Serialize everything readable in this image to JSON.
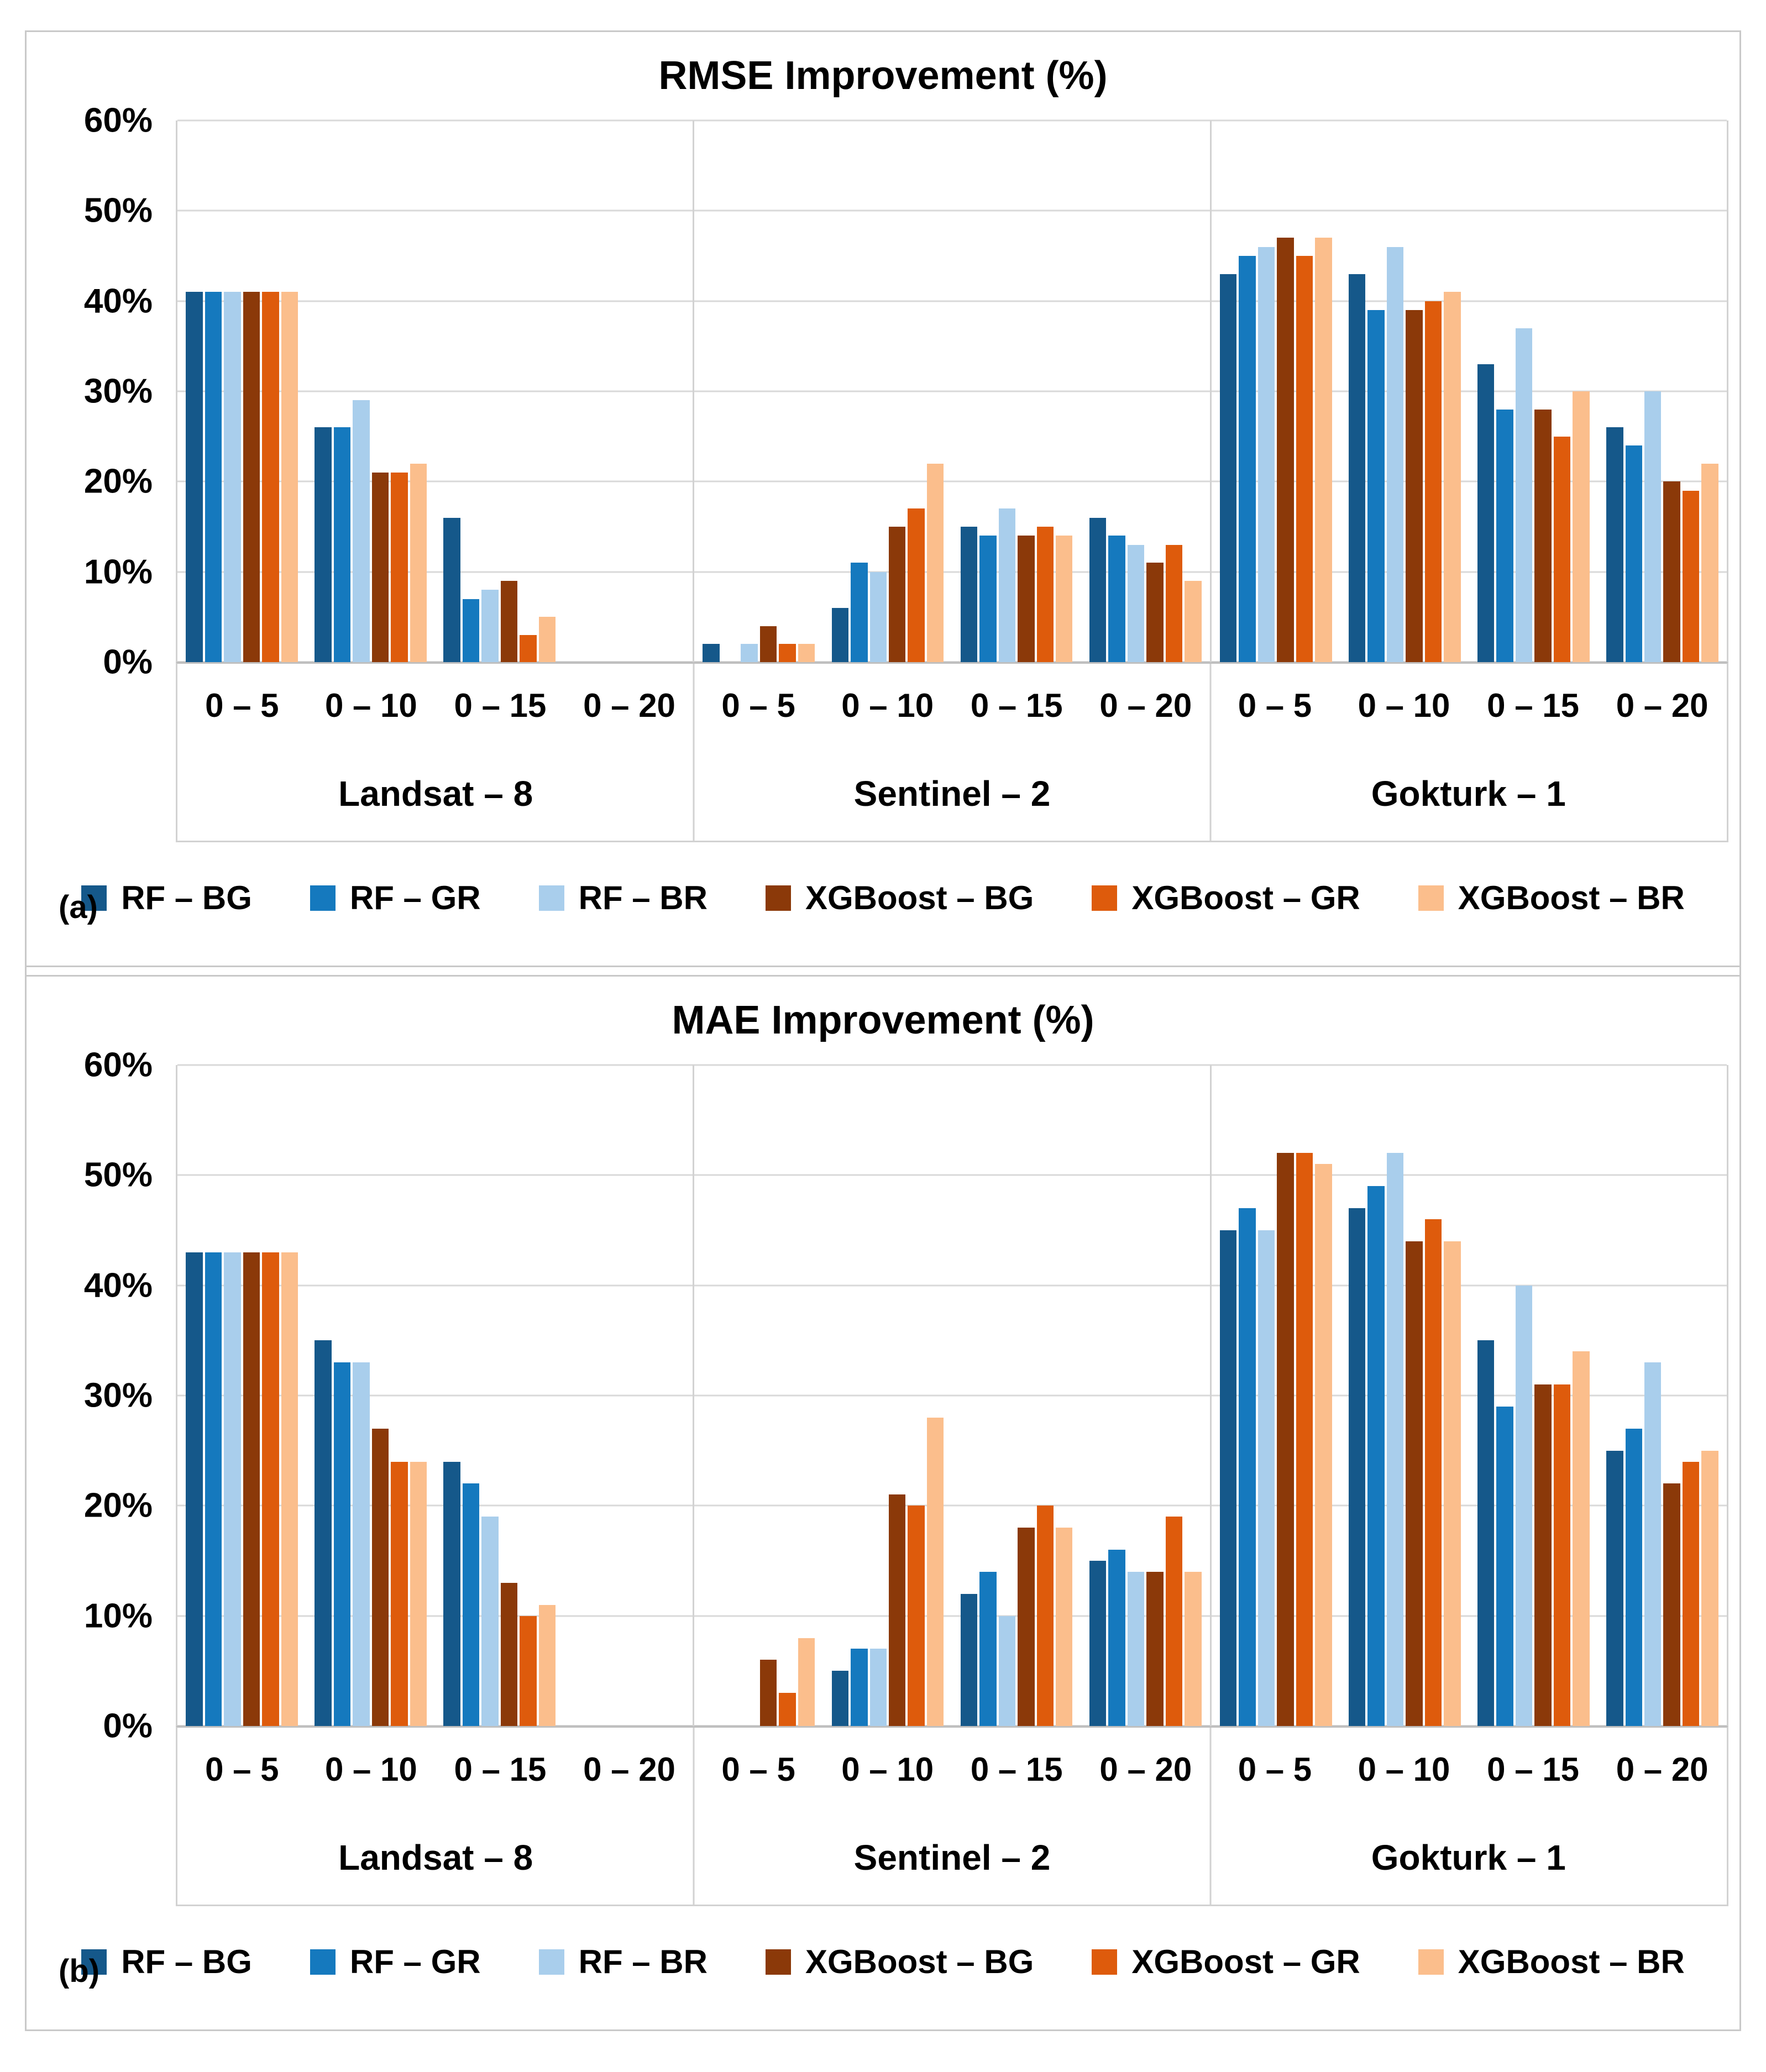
{
  "series": [
    {
      "name": "RF – BG",
      "color": "#15588A"
    },
    {
      "name": "RF – GR",
      "color": "#1579BE"
    },
    {
      "name": "RF – BR",
      "color": "#A9CEEC"
    },
    {
      "name": "XGBoost – BG",
      "color": "#8B3909"
    },
    {
      "name": "XGBoost – GR",
      "color": "#DE5B0C"
    },
    {
      "name": "XGBoost – BR",
      "color": "#FBBE8C"
    }
  ],
  "y_axis": {
    "ticks": [
      "60%",
      "50%",
      "40%",
      "30%",
      "20%",
      "10%",
      "0%"
    ],
    "max": 60
  },
  "chart_data": [
    {
      "type": "bar",
      "panel_label": "(a)",
      "title": "RMSE Improvement (%)",
      "ylabel": "",
      "ylim": [
        0,
        60
      ],
      "grid": true,
      "legend_position": "bottom",
      "series_names": [
        "RF – BG",
        "RF – GR",
        "RF – BR",
        "XGBoost – BG",
        "XGBoost – GR",
        "XGBoost – BR"
      ],
      "groups": [
        {
          "name": "Landsat – 8",
          "bins": [
            {
              "label": "0 – 5",
              "values": [
                41,
                41,
                41,
                41,
                41,
                41
              ]
            },
            {
              "label": "0 – 10",
              "values": [
                26,
                26,
                29,
                21,
                21,
                22
              ]
            },
            {
              "label": "0 – 15",
              "values": [
                16,
                7,
                8,
                9,
                3,
                5
              ]
            },
            {
              "label": "0 – 20",
              "values": [
                0,
                0,
                0,
                0,
                0,
                0
              ]
            }
          ]
        },
        {
          "name": "Sentinel – 2",
          "bins": [
            {
              "label": "0 – 5",
              "values": [
                2,
                0,
                2,
                4,
                2,
                2
              ]
            },
            {
              "label": "0 – 10",
              "values": [
                6,
                11,
                10,
                15,
                17,
                22
              ]
            },
            {
              "label": "0 – 15",
              "values": [
                15,
                14,
                17,
                14,
                15,
                14
              ]
            },
            {
              "label": "0 – 20",
              "values": [
                16,
                14,
                13,
                11,
                13,
                9
              ]
            }
          ]
        },
        {
          "name": "Gokturk – 1",
          "bins": [
            {
              "label": "0 – 5",
              "values": [
                43,
                45,
                46,
                47,
                45,
                47
              ]
            },
            {
              "label": "0 – 10",
              "values": [
                43,
                39,
                46,
                39,
                40,
                41
              ]
            },
            {
              "label": "0 – 15",
              "values": [
                33,
                28,
                37,
                28,
                25,
                30
              ]
            },
            {
              "label": "0 – 20",
              "values": [
                26,
                24,
                30,
                20,
                19,
                22
              ]
            }
          ]
        }
      ]
    },
    {
      "type": "bar",
      "panel_label": "(b)",
      "title": "MAE Improvement (%)",
      "ylabel": "",
      "ylim": [
        0,
        60
      ],
      "grid": true,
      "legend_position": "bottom",
      "series_names": [
        "RF – BG",
        "RF – GR",
        "RF – BR",
        "XGBoost – BG",
        "XGBoost – GR",
        "XGBoost – BR"
      ],
      "groups": [
        {
          "name": "Landsat – 8",
          "bins": [
            {
              "label": "0 – 5",
              "values": [
                43,
                43,
                43,
                43,
                43,
                43
              ]
            },
            {
              "label": "0 – 10",
              "values": [
                35,
                33,
                33,
                27,
                24,
                24
              ]
            },
            {
              "label": "0 – 15",
              "values": [
                24,
                22,
                19,
                13,
                10,
                11
              ]
            },
            {
              "label": "0 – 20",
              "values": [
                0,
                0,
                0,
                0,
                0,
                0
              ]
            }
          ]
        },
        {
          "name": "Sentinel – 2",
          "bins": [
            {
              "label": "0 – 5",
              "values": [
                0,
                0,
                0,
                6,
                3,
                8
              ]
            },
            {
              "label": "0 – 10",
              "values": [
                5,
                7,
                7,
                21,
                20,
                28
              ]
            },
            {
              "label": "0 – 15",
              "values": [
                12,
                14,
                10,
                18,
                20,
                18
              ]
            },
            {
              "label": "0 – 20",
              "values": [
                15,
                16,
                14,
                14,
                19,
                14
              ]
            }
          ]
        },
        {
          "name": "Gokturk – 1",
          "bins": [
            {
              "label": "0 – 5",
              "values": [
                45,
                47,
                45,
                52,
                52,
                51
              ]
            },
            {
              "label": "0 – 10",
              "values": [
                47,
                49,
                52,
                44,
                46,
                44
              ]
            },
            {
              "label": "0 – 15",
              "values": [
                35,
                29,
                40,
                31,
                31,
                34
              ]
            },
            {
              "label": "0 – 20",
              "values": [
                25,
                27,
                33,
                22,
                24,
                25
              ]
            }
          ]
        }
      ]
    }
  ]
}
